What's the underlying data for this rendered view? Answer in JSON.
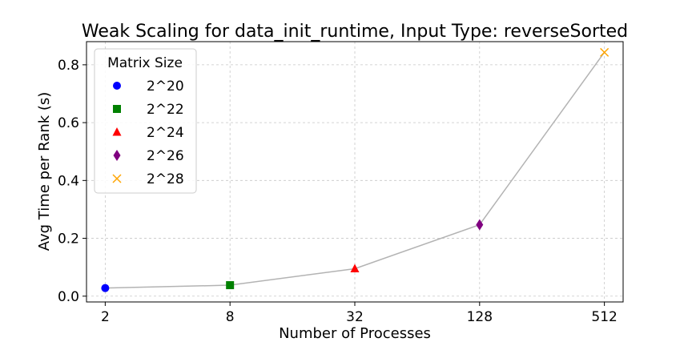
{
  "chart_data": {
    "type": "line",
    "title": "Weak Scaling for data_init_runtime, Input Type: reverseSorted",
    "xlabel": "Number of Processes",
    "ylabel": "Avg Time per Rank (s)",
    "x_scale": "log2",
    "x_ticks": [
      "2",
      "8",
      "32",
      "128",
      "512"
    ],
    "y_ticks": [
      "0.0",
      "0.2",
      "0.4",
      "0.6",
      "0.8"
    ],
    "ylim": [
      -0.02,
      0.88
    ],
    "grid": true,
    "line_color": "#b3b3b3",
    "legend": {
      "title": "Matrix Size",
      "placement": "top-left"
    },
    "series": [
      {
        "name": "2^20",
        "x": 2,
        "y": 0.028,
        "marker": "circle",
        "color": "#0000ff"
      },
      {
        "name": "2^22",
        "x": 8,
        "y": 0.038,
        "marker": "square",
        "color": "#008000"
      },
      {
        "name": "2^24",
        "x": 32,
        "y": 0.095,
        "marker": "triangle",
        "color": "#ff0000"
      },
      {
        "name": "2^26",
        "x": 128,
        "y": 0.247,
        "marker": "diamond",
        "color": "#800080"
      },
      {
        "name": "2^28",
        "x": 512,
        "y": 0.843,
        "marker": "x",
        "color": "#ffa500"
      }
    ]
  }
}
